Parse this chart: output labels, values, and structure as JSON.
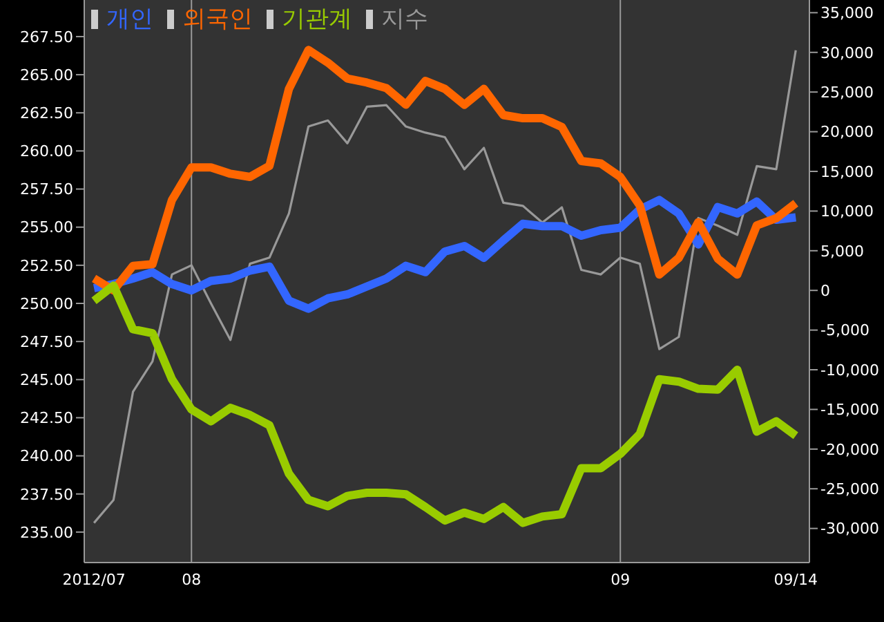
{
  "chart_data": {
    "type": "line",
    "categories": [
      "2012/07",
      null,
      null,
      null,
      null,
      "08",
      null,
      null,
      null,
      null,
      null,
      null,
      null,
      null,
      null,
      null,
      null,
      null,
      null,
      null,
      null,
      null,
      null,
      null,
      null,
      null,
      null,
      "09",
      null,
      null,
      null,
      null,
      null,
      null,
      null,
      null,
      "09/14"
    ],
    "series": [
      {
        "name": "개인",
        "color": "#3366ff",
        "axis": "y2",
        "values": [
          300,
          800,
          1500,
          2300,
          800,
          0,
          1200,
          1500,
          2500,
          3000,
          -1300,
          -2300,
          -1000,
          -500,
          500,
          1500,
          3100,
          2300,
          4900,
          5600,
          4100,
          6300,
          8400,
          8100,
          8100,
          6900,
          7600,
          7900,
          10200,
          11400,
          9700,
          5800,
          10500,
          9700,
          11200,
          8900,
          9200
        ]
      },
      {
        "name": "외국인",
        "color": "#ff6600",
        "axis": "y2",
        "values": [
          1500,
          0,
          3100,
          3300,
          11400,
          15500,
          15500,
          14700,
          14300,
          15700,
          25400,
          30300,
          28700,
          26700,
          26200,
          25500,
          23400,
          26400,
          25400,
          23400,
          25400,
          22100,
          21700,
          21700,
          20600,
          16300,
          16000,
          14300,
          10700,
          2000,
          4100,
          8600,
          4000,
          2000,
          8200,
          9100,
          11000
        ]
      },
      {
        "name": "기관계",
        "color": "#99cc00",
        "axis": "y2",
        "values": [
          -1300,
          600,
          -4900,
          -5400,
          -11200,
          -15000,
          -16500,
          -14800,
          -15700,
          -17000,
          -23100,
          -26400,
          -27200,
          -25900,
          -25500,
          -25500,
          -25700,
          -27300,
          -29000,
          -28000,
          -28800,
          -27300,
          -29300,
          -28500,
          -28200,
          -22400,
          -22400,
          -20600,
          -18100,
          -11200,
          -11500,
          -12400,
          -12500,
          -10000,
          -17800,
          -16500,
          -18300
        ]
      },
      {
        "name": "지수",
        "color": "#999999",
        "axis": "y",
        "values": [
          235.6,
          237.1,
          244.2,
          246.2,
          251.9,
          252.5,
          250.0,
          247.6,
          252.6,
          253.0,
          255.9,
          261.6,
          262.0,
          260.5,
          262.9,
          263.0,
          261.6,
          261.2,
          260.9,
          258.8,
          260.2,
          256.6,
          256.4,
          255.3,
          256.3,
          252.2,
          251.9,
          253.0,
          252.6,
          247.0,
          247.8,
          255.6,
          255.1,
          254.5,
          259.0,
          258.8,
          266.6
        ]
      }
    ],
    "ylim": [
      233,
      269.9
    ],
    "yticks": [
      {
        "value": 235,
        "label": "235.00"
      },
      {
        "value": 237.5,
        "label": "237.50"
      },
      {
        "value": 240,
        "label": "240.00"
      },
      {
        "value": 242.5,
        "label": "242.50"
      },
      {
        "value": 245,
        "label": "245.00"
      },
      {
        "value": 247.5,
        "label": "247.50"
      },
      {
        "value": 250,
        "label": "250.00"
      },
      {
        "value": 252.5,
        "label": "252.50"
      },
      {
        "value": 255,
        "label": "255.00"
      },
      {
        "value": 257.5,
        "label": "257.50"
      },
      {
        "value": 260,
        "label": "260.00"
      },
      {
        "value": 262.5,
        "label": "262.50"
      },
      {
        "value": 265,
        "label": "265.00"
      },
      {
        "value": 267.5,
        "label": "267.50"
      }
    ],
    "y2lim": [
      -34300,
      36600
    ],
    "y2ticks": [
      {
        "value": -30000,
        "label": "-30,000"
      },
      {
        "value": -25000,
        "label": "-25,000"
      },
      {
        "value": -20000,
        "label": "-20,000"
      },
      {
        "value": -15000,
        "label": "-15,000"
      },
      {
        "value": -10000,
        "label": "-10,000"
      },
      {
        "value": -5000,
        "label": "-5,000"
      },
      0,
      {
        "value": 5000,
        "label": "5,000"
      },
      {
        "value": 10000,
        "label": "10,000"
      },
      {
        "value": 15000,
        "label": "15,000"
      },
      {
        "value": 20000,
        "label": "20,000"
      },
      {
        "value": 25000,
        "label": "25,000"
      },
      {
        "value": 30000,
        "label": "30,000"
      },
      {
        "value": 35000,
        "label": "35,000"
      }
    ],
    "ref_lines": [
      {
        "axis": "x",
        "value": "08",
        "color": "#999999"
      },
      {
        "axis": "x",
        "value": "09",
        "color": "#999999"
      }
    ],
    "legend": "top left",
    "marker": "none",
    "line_style": "solid"
  }
}
